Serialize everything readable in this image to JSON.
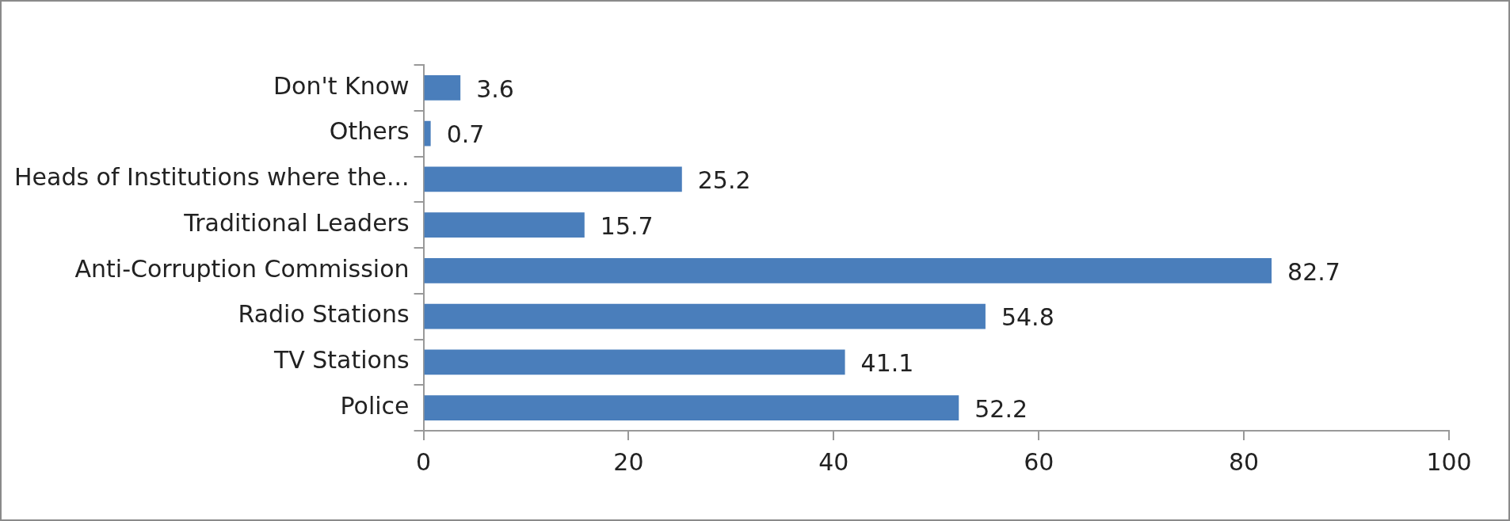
{
  "chart_data": {
    "type": "bar",
    "orientation": "horizontal",
    "categories": [
      "Don't Know",
      "Others",
      "Heads of Institutions where the...",
      "Traditional Leaders",
      "Anti-Corruption Commission",
      "Radio Stations",
      "TV Stations",
      "Police"
    ],
    "values": [
      3.6,
      0.7,
      25.2,
      15.7,
      82.7,
      54.8,
      41.1,
      52.2
    ],
    "color": "#4a7ebb",
    "xlim": [
      0,
      100
    ],
    "xticks": [
      0,
      20,
      40,
      60,
      80,
      100
    ],
    "data_labels": true,
    "grid": false,
    "legend": false
  }
}
